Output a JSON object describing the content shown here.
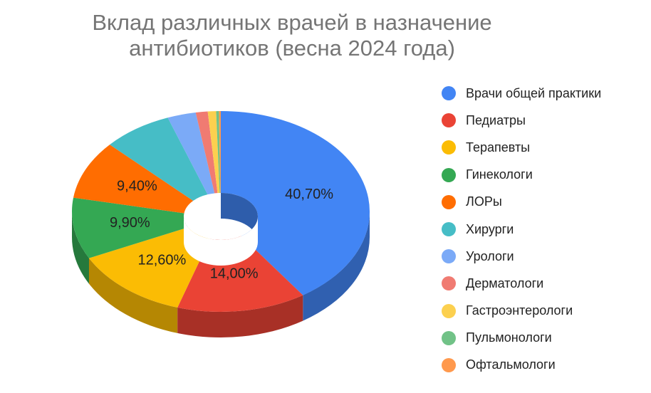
{
  "chart_data": {
    "type": "pie",
    "variant": "3d-donut",
    "title_lines": [
      "Вклад различных врачей в назначение",
      "антибиотиков (весна 2024 года)"
    ],
    "legend_position": "right",
    "slices": [
      {
        "name": "Врачи общей практики",
        "value": 40.7,
        "label": "40,70%",
        "color": "#4285f4"
      },
      {
        "name": "Педиатры",
        "value": 14.0,
        "label": "14,00%",
        "color": "#ea4335"
      },
      {
        "name": "Терапевты",
        "value": 12.6,
        "label": "12,60%",
        "color": "#fbbc04"
      },
      {
        "name": "Гинекологи",
        "value": 9.9,
        "label": "9,90%",
        "color": "#34a853"
      },
      {
        "name": "ЛОРы",
        "value": 9.4,
        "label": "9,40%",
        "color": "#ff6d01"
      },
      {
        "name": "Хирурги",
        "value": 7.6,
        "label": "",
        "color": "#46bdc6"
      },
      {
        "name": "Урологи",
        "value": 3.1,
        "label": "",
        "color": "#7baaf7"
      },
      {
        "name": "Дерматологи",
        "value": 1.3,
        "label": "",
        "color": "#f07b72"
      },
      {
        "name": "Гастроэнтерологи",
        "value": 0.9,
        "label": "",
        "color": "#fcd04f"
      },
      {
        "name": "Пульмонологи",
        "value": 0.3,
        "label": "",
        "color": "#71c287"
      },
      {
        "name": "Офтальмологи",
        "value": 0.2,
        "label": "",
        "color": "#ff994d"
      }
    ]
  }
}
